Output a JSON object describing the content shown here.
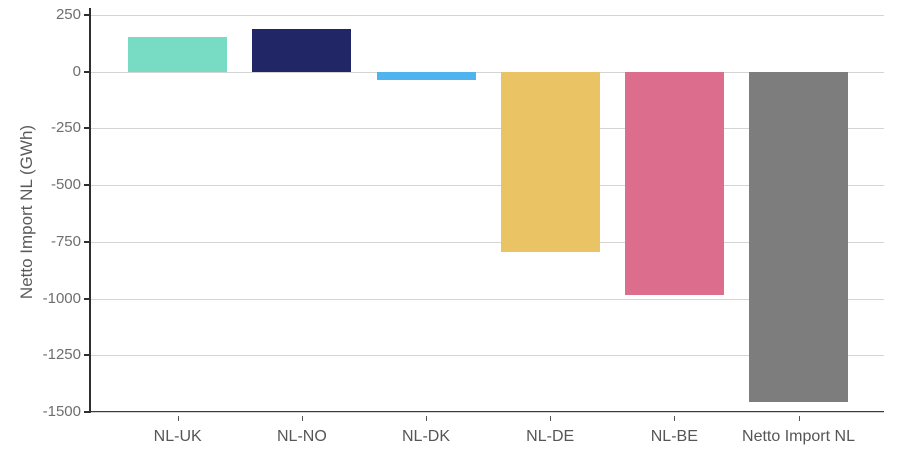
{
  "chart_data": {
    "type": "bar",
    "categories": [
      "NL-UK",
      "NL-NO",
      "NL-DK",
      "NL-DE",
      "NL-BE",
      "Netto Import NL"
    ],
    "values": [
      155,
      190,
      -37,
      -795,
      -985,
      -1455
    ],
    "bar_colors": [
      "#78dcc4",
      "#212666",
      "#4fb3ef",
      "#e9c364",
      "#dc6d8d",
      "#7d7d7d"
    ],
    "xlabel": "",
    "ylabel": "Netto Import NL (GWh)",
    "ylim": [
      -1500,
      250
    ],
    "yticks": [
      250,
      0,
      -250,
      -500,
      -750,
      -1000,
      -1250,
      -1500
    ],
    "grid": true,
    "legend": "none",
    "colors": {
      "background": "#ffffff",
      "gridline": "#d4d4d4",
      "axis_line": "#2f2f2f",
      "ytick_label": "#6e6e6e",
      "xtick_label": "#565656",
      "axis_title": "#5a5a5a"
    }
  }
}
